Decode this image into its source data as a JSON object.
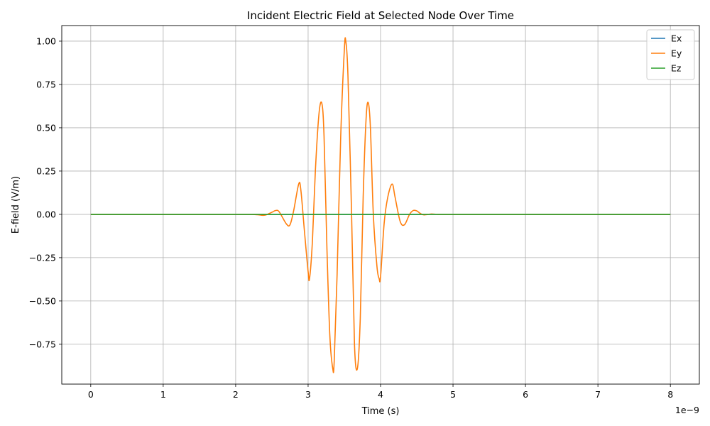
{
  "chart_data": {
    "type": "line",
    "title": "Incident Electric Field at Selected Node Over Time",
    "xlabel": "Time (s)",
    "ylabel": "E-field (V/m)",
    "x_offset_label": "1e−9",
    "xlim": [
      -0.4,
      8.4
    ],
    "ylim": [
      -0.98,
      1.09
    ],
    "x_ticks": [
      0,
      1,
      2,
      3,
      4,
      5,
      6,
      7,
      8
    ],
    "x_tick_labels": [
      "0",
      "1",
      "2",
      "3",
      "4",
      "5",
      "6",
      "7",
      "8"
    ],
    "y_ticks": [
      -0.75,
      -0.5,
      -0.25,
      0.0,
      0.25,
      0.5,
      0.75,
      1.0
    ],
    "y_tick_labels": [
      "−0.75",
      "−0.50",
      "−0.25",
      "0.00",
      "0.25",
      "0.50",
      "0.75",
      "1.00"
    ],
    "grid": true,
    "legend_position": "top-right",
    "x": [
      0,
      1.0,
      2.0,
      2.2,
      2.3,
      2.4,
      2.5,
      2.55,
      2.6,
      2.7,
      2.75,
      2.8,
      2.87,
      2.9,
      2.95,
      3.0,
      3.02,
      3.06,
      3.1,
      3.15,
      3.19,
      3.22,
      3.26,
      3.3,
      3.34,
      3.36,
      3.4,
      3.45,
      3.5,
      3.52,
      3.55,
      3.6,
      3.64,
      3.68,
      3.72,
      3.76,
      3.8,
      3.83,
      3.86,
      3.9,
      3.95,
      3.98,
      4.0,
      4.05,
      4.1,
      4.16,
      4.2,
      4.27,
      4.33,
      4.4,
      4.45,
      4.5,
      4.55,
      4.6,
      4.7,
      4.8,
      5.0,
      6.0,
      7.0,
      8.0
    ],
    "series": [
      {
        "name": "Ex",
        "color": "#1f77b4",
        "values": [
          0,
          0,
          0,
          0,
          0,
          0,
          0,
          0,
          0,
          0,
          0,
          0,
          0,
          0,
          0,
          0,
          0,
          0,
          0,
          0,
          0,
          0,
          0,
          0,
          0,
          0,
          0,
          0,
          0,
          0,
          0,
          0,
          0,
          0,
          0,
          0,
          0,
          0,
          0,
          0,
          0,
          0,
          0,
          0,
          0,
          0,
          0,
          0,
          0,
          0,
          0,
          0,
          0,
          0,
          0,
          0,
          0,
          0,
          0,
          0
        ]
      },
      {
        "name": "Ey",
        "color": "#ff7f0e",
        "values": [
          0,
          0,
          0,
          0,
          -0.002,
          -0.005,
          0.012,
          0.022,
          0.015,
          -0.055,
          -0.06,
          0.02,
          0.175,
          0.14,
          -0.1,
          -0.33,
          -0.37,
          -0.15,
          0.25,
          0.58,
          0.64,
          0.45,
          -0.2,
          -0.7,
          -0.89,
          -0.85,
          -0.35,
          0.45,
          0.95,
          1.0,
          0.8,
          0.0,
          -0.75,
          -0.89,
          -0.6,
          0.1,
          0.55,
          0.645,
          0.5,
          0.0,
          -0.3,
          -0.37,
          -0.36,
          -0.05,
          0.1,
          0.175,
          0.1,
          -0.04,
          -0.06,
          0.0,
          0.022,
          0.02,
          0.005,
          -0.003,
          0.002,
          0,
          0,
          0,
          0,
          0
        ]
      },
      {
        "name": "Ez",
        "color": "#2ca02c",
        "values": [
          0,
          0,
          0,
          0,
          0,
          0,
          0,
          0,
          0,
          0,
          0,
          0,
          0,
          0,
          0,
          0,
          0,
          0,
          0,
          0,
          0,
          0,
          0,
          0,
          0,
          0,
          0,
          0,
          0,
          0,
          0,
          0,
          0,
          0,
          0,
          0,
          0,
          0,
          0,
          0,
          0,
          0,
          0,
          0,
          0,
          0,
          0,
          0,
          0,
          0,
          0,
          0,
          0,
          0,
          0,
          0,
          0,
          0,
          0,
          0
        ]
      }
    ]
  }
}
